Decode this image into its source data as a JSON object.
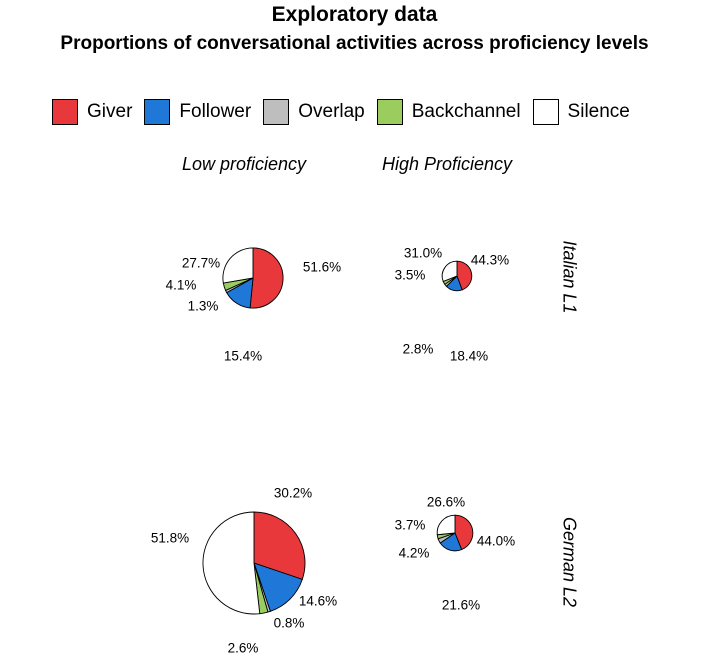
{
  "header": {
    "title": "Exploratory data",
    "subtitle": "Proportions of conversational activities across proficiency levels"
  },
  "legend": [
    {
      "label": "Giver",
      "color": "#E8383B"
    },
    {
      "label": "Follower",
      "color": "#1F78D8"
    },
    {
      "label": "Overlap",
      "color": "#BEBEBE"
    },
    {
      "label": "Backchannel",
      "color": "#9ACD5E"
    },
    {
      "label": "Silence",
      "color": "#FFFFFF"
    }
  ],
  "columns": [
    "Low proficiency",
    "High Proficiency"
  ],
  "rows": [
    "Italian L1",
    "German L2"
  ],
  "chart_data": {
    "type": "pie",
    "title": "Proportions of conversational activities across proficiency levels",
    "categories": [
      "Giver",
      "Follower",
      "Overlap",
      "Backchannel",
      "Silence"
    ],
    "panels": [
      {
        "row": "Italian L1",
        "column": "Low proficiency",
        "values": [
          51.6,
          15.4,
          1.3,
          4.1,
          27.7
        ],
        "labels": [
          "51.6%",
          "15.4%",
          "1.3%",
          "4.1%",
          "27.7%"
        ],
        "relative_size": 0.59
      },
      {
        "row": "Italian L1",
        "column": "High Proficiency",
        "values": [
          44.3,
          18.4,
          2.8,
          3.5,
          31.0
        ],
        "labels": [
          "44.3%",
          "18.4%",
          "2.8%",
          "3.5%",
          "31.0%"
        ],
        "relative_size": 0.29
      },
      {
        "row": "German L2",
        "column": "Low proficiency",
        "values": [
          30.2,
          14.6,
          0.8,
          2.6,
          51.8
        ],
        "labels": [
          "30.2%",
          "14.6%",
          "0.8%",
          "2.6%",
          "51.8%"
        ],
        "relative_size": 1.0
      },
      {
        "row": "German L2",
        "column": "High Proficiency",
        "values": [
          44.0,
          21.6,
          4.2,
          3.7,
          26.6
        ],
        "labels": [
          "44.0%",
          "21.6%",
          "4.2%",
          "3.7%",
          "26.6%"
        ],
        "relative_size": 0.35
      }
    ]
  }
}
